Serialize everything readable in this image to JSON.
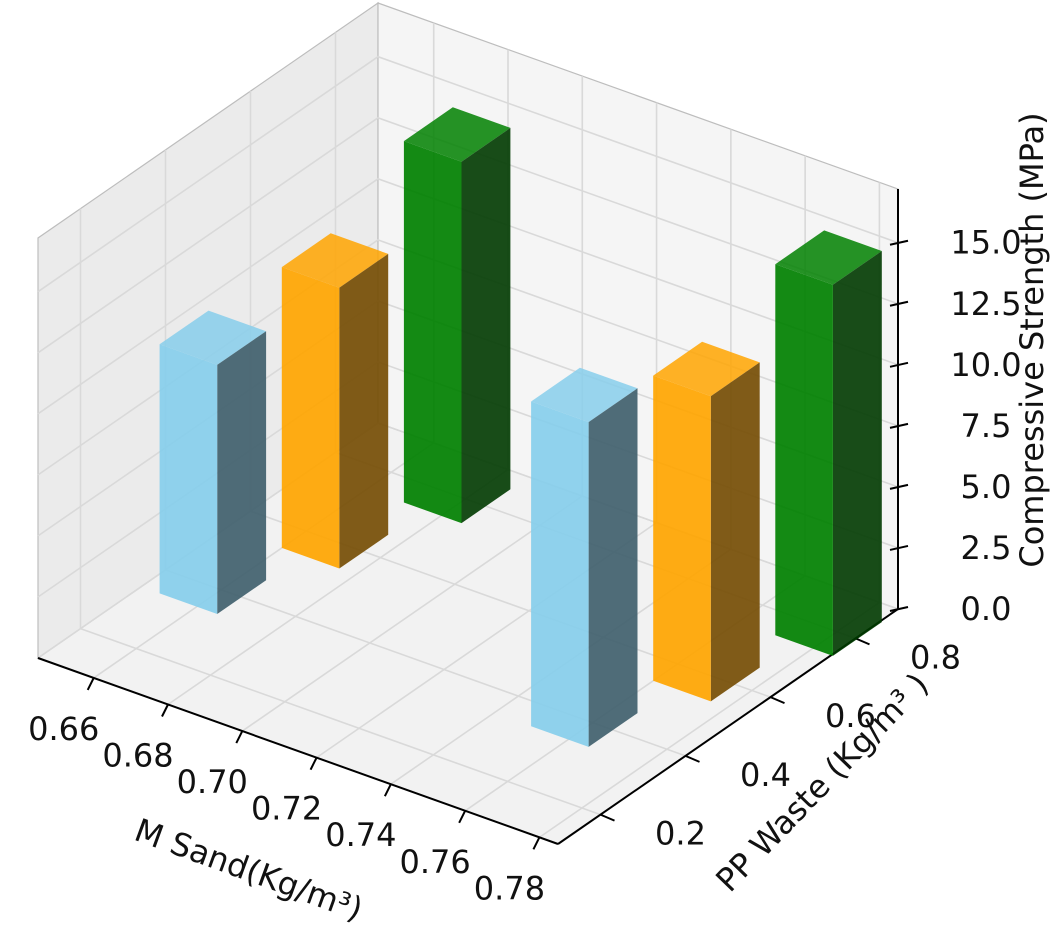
{
  "chart_data": {
    "type": "bar3d",
    "xlabel": "M Sand(Kg/m³)",
    "ylabel": "PP Waste (Kg/m³ )",
    "zlabel": "Compressive Strength (MPa)",
    "x_ticks": [
      "0.66",
      "0.68",
      "0.70",
      "0.72",
      "0.74",
      "0.76",
      "0.78"
    ],
    "y_ticks": [
      "0.2",
      "0.4",
      "0.6",
      "0.8"
    ],
    "z_ticks": [
      "0.0",
      "2.5",
      "5.0",
      "7.5",
      "10.0",
      "12.5",
      "15.0"
    ],
    "xlim": [
      0.66,
      0.78
    ],
    "ylim": [
      0.2,
      0.8
    ],
    "zlim": [
      0,
      17.5
    ],
    "grid": true,
    "bars": [
      {
        "x": 0.67,
        "y": 0.8,
        "z": 14.8,
        "color": "#008000"
      },
      {
        "x": 0.66,
        "y": 0.6,
        "z": 11.5,
        "color": "#ffa500"
      },
      {
        "x": 0.65,
        "y": 0.4,
        "z": 10.2,
        "color": "#87ceeb"
      },
      {
        "x": 0.77,
        "y": 0.8,
        "z": 15.2,
        "color": "#008000"
      },
      {
        "x": 0.76,
        "y": 0.6,
        "z": 12.5,
        "color": "#ffa500"
      },
      {
        "x": 0.75,
        "y": 0.4,
        "z": 13.3,
        "color": "#87ceeb"
      }
    ]
  }
}
